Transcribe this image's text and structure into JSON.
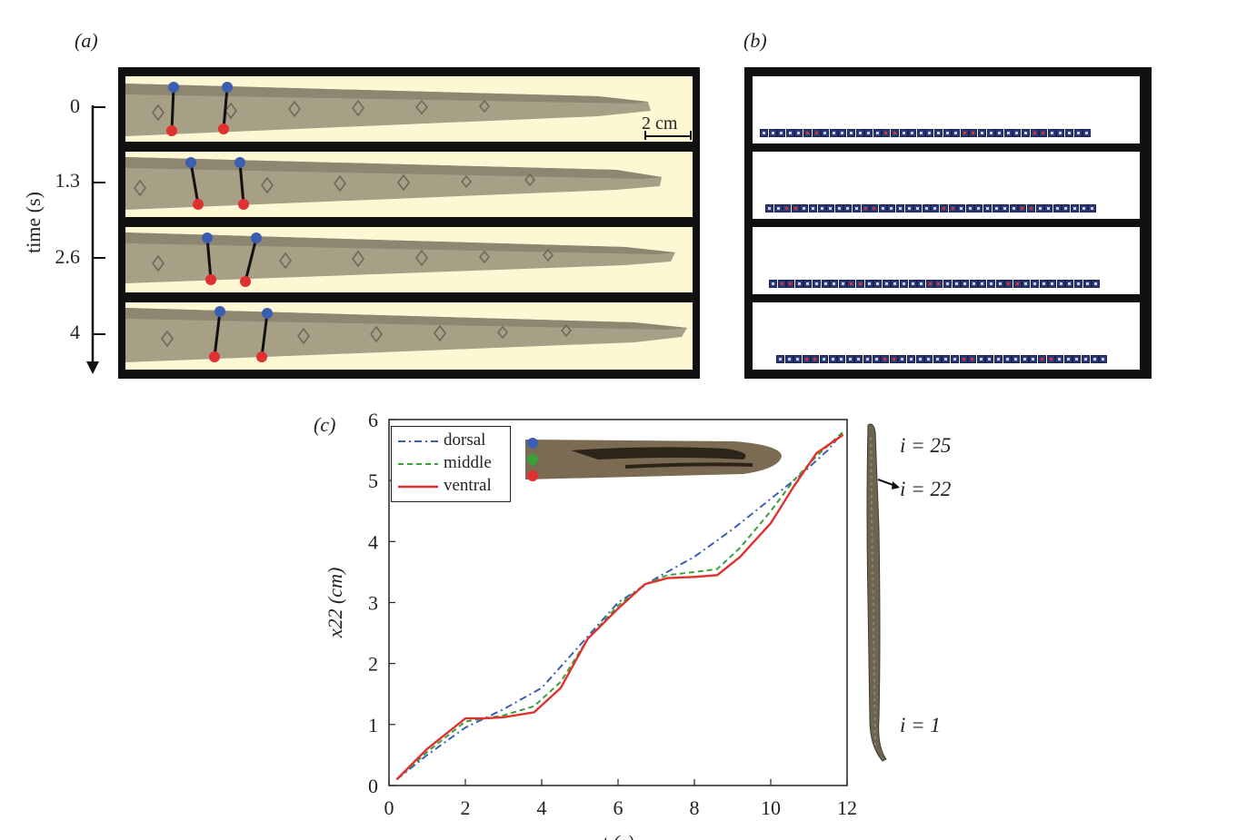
{
  "panel_a": {
    "label": "(a)",
    "time_axis_label": "time (s)",
    "time_ticks": [
      "0",
      "1.3",
      "2.6",
      "4"
    ],
    "scale_bar_label": "2 cm"
  },
  "panel_b": {
    "label": "(b)"
  },
  "panel_c": {
    "label": "(c)",
    "legend": [
      "dorsal",
      "middle",
      "ventral"
    ],
    "index_labels": [
      "i = 25",
      "i = 22",
      "i = 1"
    ]
  },
  "colors": {
    "dorsal": "#3a5fb0",
    "middle": "#3aa03a",
    "ventral": "#e03030",
    "block": "#2d3a78",
    "marker_red": "#e03030"
  },
  "chart_data": {
    "type": "line",
    "xlabel": "t (s)",
    "ylabel": "x22 (cm)",
    "xlim": [
      0,
      12
    ],
    "ylim": [
      0,
      6
    ],
    "xticks": [
      "0",
      "2",
      "4",
      "6",
      "8",
      "10",
      "12"
    ],
    "yticks": [
      "0",
      "1",
      "2",
      "3",
      "4",
      "5",
      "6"
    ],
    "legend_position": "top-left",
    "series": [
      {
        "name": "dorsal",
        "style": "dash-dot",
        "color": "#3a5fb0",
        "x": [
          0.2,
          1.0,
          2.0,
          3.0,
          4.0,
          5.0,
          6.0,
          7.0,
          8.0,
          9.0,
          10.0,
          10.8,
          11.5,
          11.9
        ],
        "y": [
          0.1,
          0.5,
          0.95,
          1.25,
          1.6,
          2.3,
          3.0,
          3.4,
          3.75,
          4.2,
          4.7,
          5.1,
          5.5,
          5.8
        ]
      },
      {
        "name": "middle",
        "style": "dashed",
        "color": "#3aa03a",
        "x": [
          0.2,
          1.0,
          2.0,
          2.5,
          3.0,
          3.8,
          4.5,
          5.2,
          6.0,
          6.7,
          7.3,
          8.0,
          8.6,
          9.2,
          10.0,
          10.6,
          11.2,
          11.9
        ],
        "y": [
          0.1,
          0.55,
          1.05,
          1.1,
          1.15,
          1.3,
          1.7,
          2.4,
          2.95,
          3.3,
          3.45,
          3.5,
          3.55,
          3.9,
          4.5,
          5.0,
          5.4,
          5.8
        ]
      },
      {
        "name": "ventral",
        "style": "solid",
        "color": "#e03030",
        "x": [
          0.2,
          1.0,
          2.0,
          2.5,
          3.0,
          3.8,
          4.5,
          5.2,
          6.0,
          6.7,
          7.3,
          8.0,
          8.6,
          9.2,
          10.0,
          10.6,
          11.2,
          11.9
        ],
        "y": [
          0.1,
          0.6,
          1.1,
          1.1,
          1.12,
          1.2,
          1.6,
          2.4,
          2.9,
          3.3,
          3.4,
          3.42,
          3.45,
          3.75,
          4.3,
          4.9,
          5.45,
          5.75
        ]
      }
    ]
  }
}
